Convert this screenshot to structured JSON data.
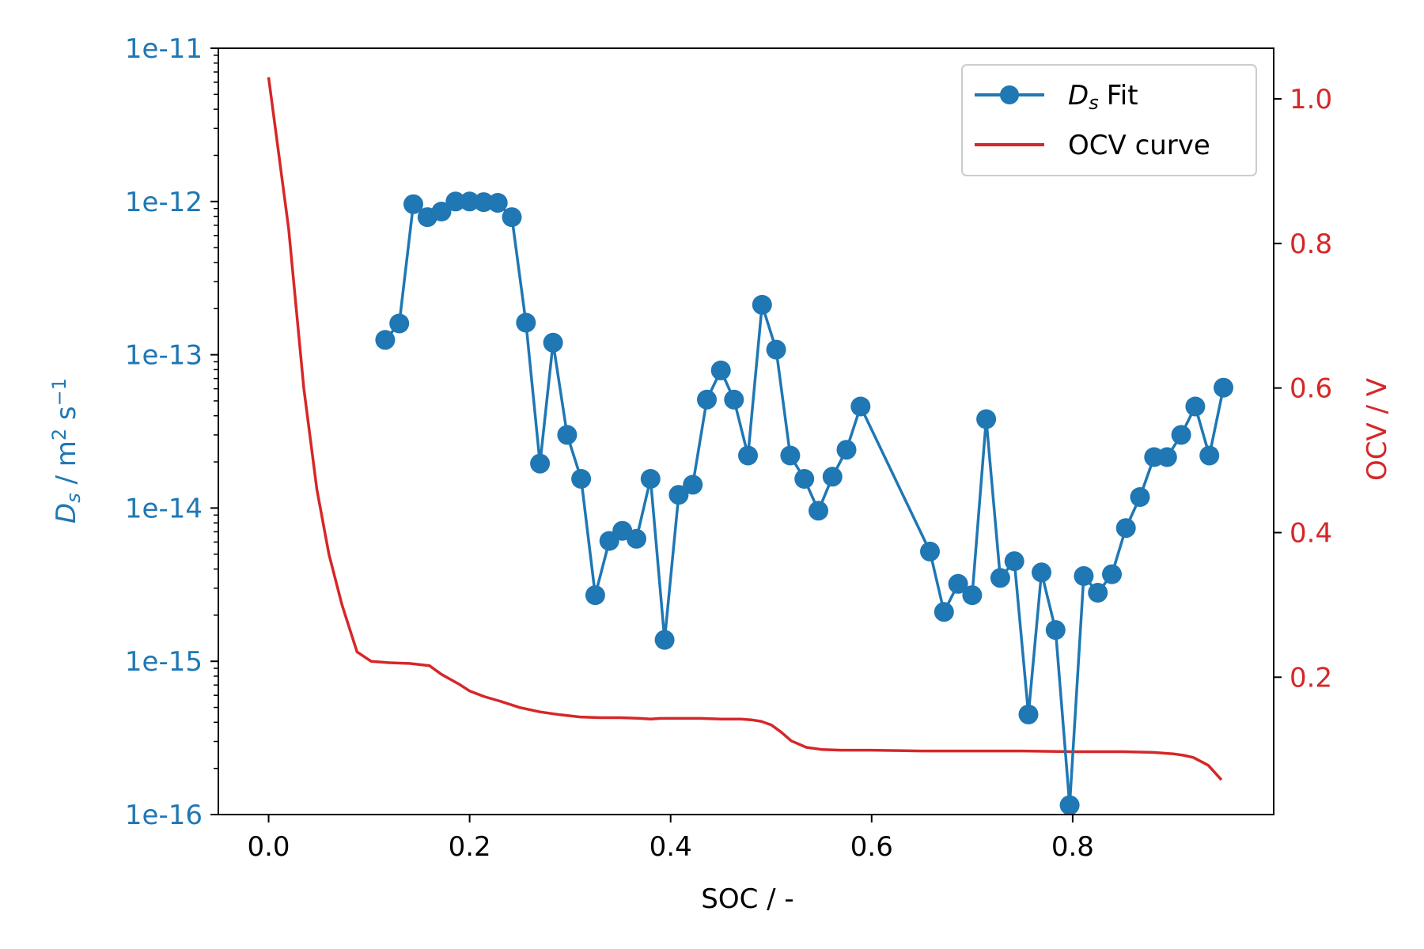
{
  "chart_data": {
    "type": "line",
    "xlabel": "SOC / -",
    "ylabel_left_symbol": "D",
    "ylabel_left_subscript": "s",
    "ylabel_left_units_pre": " / m",
    "ylabel_left_units_sup1": "2",
    "ylabel_left_units_mid": " s",
    "ylabel_left_units_sup2": "−1",
    "ylabel_right": "OCV / V",
    "xlim": [
      -0.05,
      1.0
    ],
    "ylim_left": [
      1e-16,
      1e-11
    ],
    "yscale_left": "log",
    "ylim_right": [
      0.01,
      1.07
    ],
    "x_ticks": [
      "0.0",
      "0.2",
      "0.4",
      "0.6",
      "0.8"
    ],
    "x_tick_values": [
      0.0,
      0.2,
      0.4,
      0.6,
      0.8
    ],
    "y_left_ticks": [
      "1e-16",
      "1e-15",
      "1e-14",
      "1e-13",
      "1e-12",
      "1e-11"
    ],
    "y_left_tick_values": [
      1e-16,
      1e-15,
      1e-14,
      1e-13,
      1e-12,
      1e-11
    ],
    "y_right_ticks": [
      "0.2",
      "0.4",
      "0.6",
      "0.8",
      "1.0"
    ],
    "y_right_tick_values": [
      0.2,
      0.4,
      0.6,
      0.8,
      1.0
    ],
    "grid": false,
    "legend_position": "top-right",
    "colors": {
      "ds": "#1f77b4",
      "ocv": "#d62728",
      "axis": "#000000"
    },
    "series": [
      {
        "name": "Fit",
        "legend_symbol": "D",
        "legend_subscript": "s",
        "axis": "left",
        "x": [
          0.116,
          0.13,
          0.144,
          0.158,
          0.172,
          0.186,
          0.2,
          0.214,
          0.228,
          0.242,
          0.256,
          0.27,
          0.283,
          0.297,
          0.311,
          0.325,
          0.339,
          0.352,
          0.366,
          0.38,
          0.394,
          0.408,
          0.422,
          0.436,
          0.45,
          0.463,
          0.477,
          0.491,
          0.505,
          0.519,
          0.533,
          0.547,
          0.561,
          0.575,
          0.589,
          0.658,
          0.672,
          0.686,
          0.7,
          0.714,
          0.728,
          0.742,
          0.756,
          0.769,
          0.783,
          0.797,
          0.811,
          0.825,
          0.839,
          0.853,
          0.867,
          0.881,
          0.894,
          0.908,
          0.922,
          0.936,
          0.95
        ],
        "values": [
          1.25e-13,
          1.6e-13,
          9.6e-13,
          7.9e-13,
          8.6e-13,
          1e-12,
          1e-12,
          9.9e-13,
          9.8e-13,
          7.9e-13,
          1.62e-13,
          1.95e-14,
          1.2e-13,
          3e-14,
          1.55e-14,
          2.7e-15,
          6.1e-15,
          7.1e-15,
          6.3e-15,
          1.55e-14,
          1.38e-15,
          1.22e-14,
          1.42e-14,
          5.1e-14,
          7.9e-14,
          5.1e-14,
          2.2e-14,
          2.12e-13,
          1.08e-13,
          2.2e-14,
          1.55e-14,
          9.6e-15,
          1.6e-14,
          2.4e-14,
          4.6e-14,
          5.2e-15,
          2.1e-15,
          3.2e-15,
          2.7e-15,
          3.8e-14,
          3.5e-15,
          4.5e-15,
          4.5e-16,
          3.8e-15,
          1.6e-15,
          1.15e-16,
          3.6e-15,
          2.8e-15,
          3.7e-15,
          7.4e-15,
          1.18e-14,
          2.15e-14,
          2.15e-14,
          3e-14,
          4.6e-14,
          2.2e-14,
          6.1e-14
        ]
      },
      {
        "name": "OCV curve",
        "axis": "right",
        "x": [
          0.0,
          0.02,
          0.035,
          0.048,
          0.06,
          0.073,
          0.088,
          0.102,
          0.12,
          0.14,
          0.16,
          0.172,
          0.19,
          0.2,
          0.215,
          0.23,
          0.25,
          0.27,
          0.29,
          0.31,
          0.33,
          0.35,
          0.37,
          0.38,
          0.39,
          0.41,
          0.43,
          0.45,
          0.47,
          0.48,
          0.49,
          0.5,
          0.51,
          0.52,
          0.535,
          0.55,
          0.57,
          0.6,
          0.65,
          0.7,
          0.75,
          0.8,
          0.85,
          0.88,
          0.9,
          0.91,
          0.92,
          0.935,
          0.948
        ],
        "values": [
          1.03,
          0.82,
          0.6,
          0.46,
          0.37,
          0.3,
          0.235,
          0.222,
          0.22,
          0.219,
          0.216,
          0.204,
          0.19,
          0.181,
          0.173,
          0.167,
          0.158,
          0.152,
          0.148,
          0.145,
          0.144,
          0.144,
          0.143,
          0.142,
          0.143,
          0.143,
          0.143,
          0.142,
          0.142,
          0.141,
          0.139,
          0.134,
          0.124,
          0.112,
          0.103,
          0.1,
          0.099,
          0.099,
          0.098,
          0.098,
          0.098,
          0.097,
          0.097,
          0.096,
          0.094,
          0.092,
          0.089,
          0.078,
          0.058
        ]
      }
    ]
  }
}
